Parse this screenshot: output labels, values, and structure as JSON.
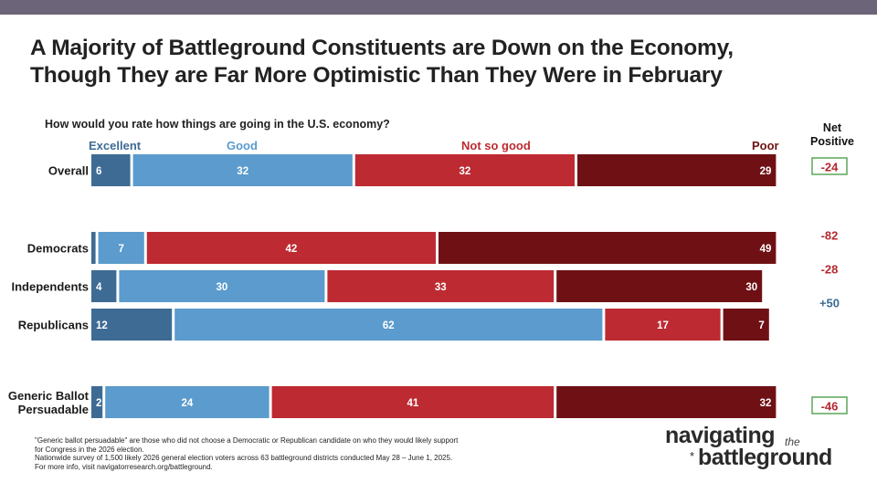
{
  "title_line1": "A Majority of Battleground Constituents are Down on the Economy,",
  "title_line2": "Though They are Far More Optimistic Than They Were in February",
  "question": "How would you rate how things are going in the U.S. economy?",
  "net_header_line1": "Net",
  "net_header_line2": "Positive",
  "footnote": [
    "\"Generic ballot persuadable\" are those who did not choose a Democratic or Republican candidate on who they would likely support",
    "for Congress in the 2026 election.",
    "Nationwide survey of 1,500 likely 2026 general election voters across 63 battleground districts conducted May 28 – June 1, 2025.",
    "For more info, visit navigatorresearch.org/battleground."
  ],
  "logo": {
    "line1": "navigating",
    "the": "the",
    "line2": "battleground",
    "star": "*"
  },
  "colors": {
    "excellent": "#3e6b94",
    "good": "#5b9bcd",
    "not_so_good": "#bd2a31",
    "poor": "#6f1114",
    "net_negative": "#b5282f",
    "net_positive": "#3d6b95",
    "net_box_border": "#5aa55a"
  },
  "chart_data": {
    "type": "bar",
    "orientation": "horizontal",
    "stacked": true,
    "xlim": [
      0,
      100
    ],
    "categories": [
      "Overall",
      "Democrats",
      "Independents",
      "Republicans",
      "Generic Ballot Persuadable"
    ],
    "series": [
      {
        "name": "Excellent",
        "values": [
          6,
          1,
          4,
          12,
          2
        ]
      },
      {
        "name": "Good",
        "values": [
          32,
          7,
          30,
          62,
          24
        ]
      },
      {
        "name": "Not so good",
        "values": [
          32,
          42,
          33,
          17,
          41
        ]
      },
      {
        "name": "Poor",
        "values": [
          29,
          49,
          30,
          7,
          32
        ]
      }
    ],
    "net_positive": [
      "-24",
      "-82",
      "-28",
      "+50",
      "-46"
    ],
    "net_boxed": [
      true,
      false,
      false,
      false,
      true
    ],
    "legend": [
      "Excellent",
      "Good",
      "Not so good",
      "Poor"
    ]
  }
}
